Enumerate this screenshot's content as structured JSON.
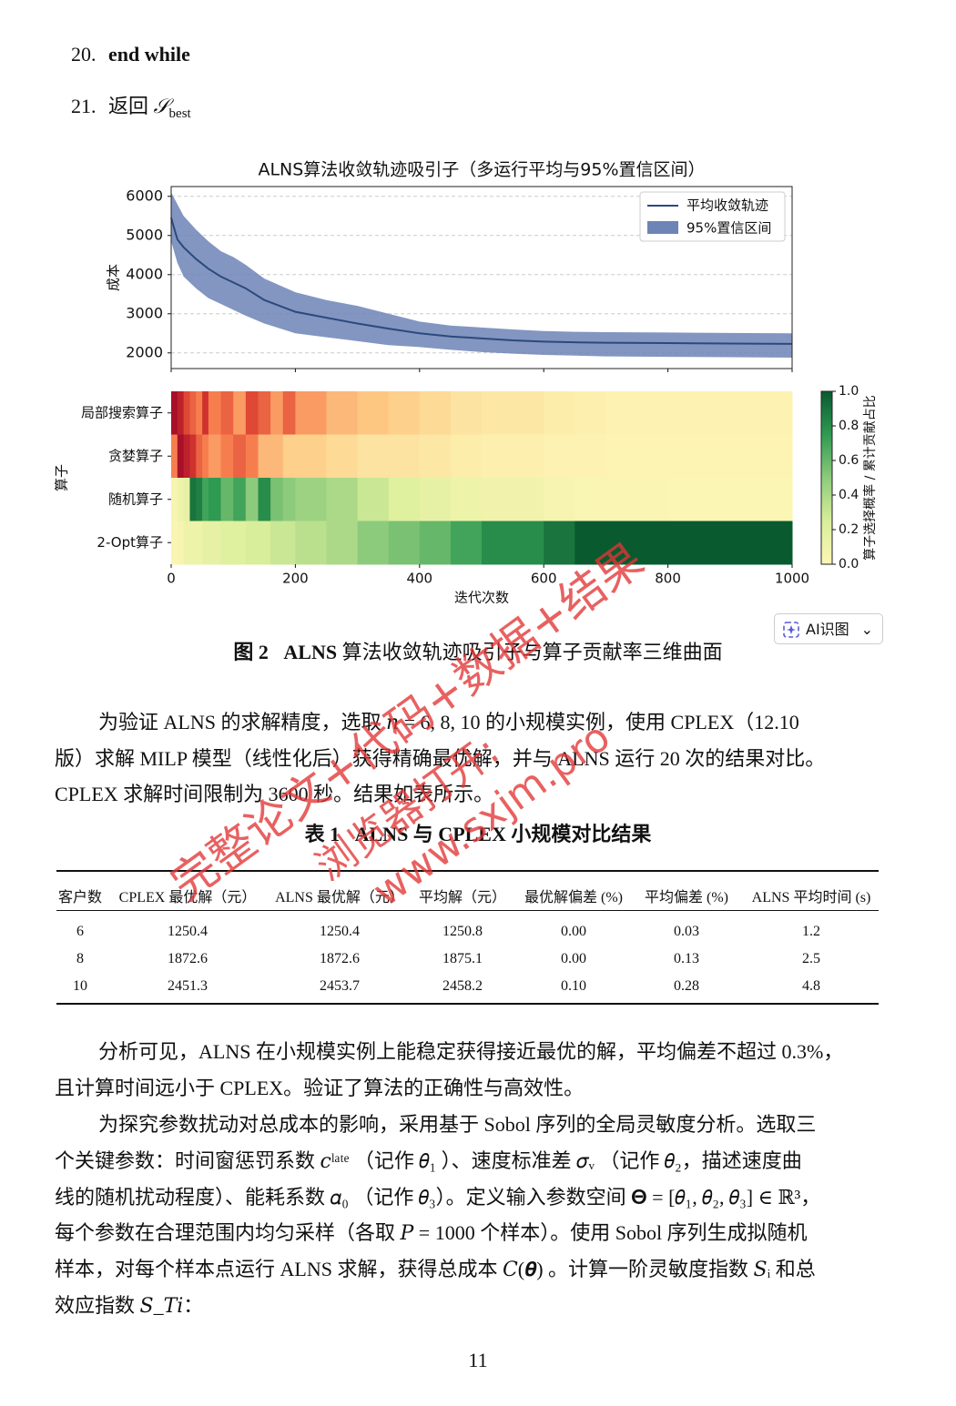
{
  "algorithm_lines": [
    {
      "number": "20.",
      "text": "end while"
    },
    {
      "number": "21.",
      "text": "返回",
      "symbol": "𝒮",
      "subscript": "best"
    }
  ],
  "chart_data": [
    {
      "type": "line",
      "title": "ALNS算法收敛轨迹吸引子（多运行平均与95%置信区间）",
      "ylabel": "成本",
      "x": [
        0,
        10,
        20,
        40,
        60,
        80,
        100,
        120,
        150,
        200,
        250,
        300,
        350,
        400,
        450,
        500,
        550,
        600,
        650,
        700,
        800,
        900,
        1000
      ],
      "series": [
        {
          "name": "平均收敛轨迹",
          "color": "#2b4a7c",
          "values": [
            5450,
            4900,
            4700,
            4400,
            4150,
            3950,
            3800,
            3650,
            3350,
            3050,
            2900,
            2750,
            2620,
            2500,
            2420,
            2370,
            2320,
            2290,
            2270,
            2260,
            2250,
            2240,
            2230
          ]
        }
      ],
      "band": {
        "name": "95%置信区间",
        "color": "#6d84b6",
        "upper": [
          6100,
          5800,
          5500,
          5150,
          4850,
          4600,
          4450,
          4250,
          3900,
          3550,
          3350,
          3200,
          3000,
          2800,
          2700,
          2650,
          2600,
          2560,
          2540,
          2530,
          2520,
          2510,
          2500
        ],
        "lower": [
          4850,
          4300,
          3950,
          3650,
          3400,
          3250,
          3100,
          2950,
          2750,
          2500,
          2400,
          2300,
          2200,
          2150,
          2080,
          2020,
          1980,
          1950,
          1930,
          1910,
          1900,
          1890,
          1880
        ]
      },
      "xlim": [
        0,
        1000
      ],
      "xticks": [
        0,
        200,
        400,
        600,
        800,
        1000
      ],
      "ylim": [
        1600,
        6250
      ],
      "yticks": [
        2000,
        3000,
        4000,
        5000,
        6000
      ],
      "grid": true,
      "legend": "upper right"
    },
    {
      "type": "heatmap",
      "xlabel": "迭代次数",
      "ylabel": "算子",
      "colorbar_label": "算子选择概率 / 累计贡献占比",
      "x_edges": [
        0,
        10,
        20,
        30,
        40,
        50,
        60,
        80,
        100,
        120,
        140,
        160,
        180,
        200,
        250,
        300,
        350,
        400,
        450,
        500,
        600,
        650,
        700,
        800,
        1000
      ],
      "rows": [
        {
          "name": "局部搜索算子",
          "colormap": "red",
          "values": [
            1.0,
            0.9,
            0.7,
            0.6,
            0.5,
            0.8,
            0.5,
            0.6,
            0.4,
            0.7,
            0.6,
            0.4,
            0.6,
            0.4,
            0.3,
            0.25,
            0.2,
            0.15,
            0.1,
            0.08,
            0.05,
            0.03,
            0.02,
            0.02
          ]
        },
        {
          "name": "贪婪算子",
          "colormap": "red",
          "values": [
            0.5,
            1.0,
            0.9,
            0.8,
            0.6,
            0.5,
            0.4,
            0.5,
            0.6,
            0.5,
            0.3,
            0.3,
            0.2,
            0.2,
            0.15,
            0.1,
            0.1,
            0.08,
            0.05,
            0.03,
            0.02,
            0.02,
            0.01,
            0.01
          ]
        },
        {
          "name": "随机算子",
          "colormap": "green",
          "values": [
            0.05,
            0.1,
            0.15,
            0.9,
            0.85,
            0.7,
            0.75,
            0.6,
            0.7,
            0.5,
            0.8,
            0.55,
            0.5,
            0.45,
            0.4,
            0.3,
            0.2,
            0.15,
            0.1,
            0.08,
            0.05,
            0.03,
            0.02,
            0.01
          ]
        },
        {
          "name": "2-Opt算子",
          "colormap": "green",
          "values": [
            0.02,
            0.05,
            0.1,
            0.1,
            0.1,
            0.15,
            0.15,
            0.2,
            0.2,
            0.25,
            0.25,
            0.3,
            0.3,
            0.35,
            0.4,
            0.5,
            0.55,
            0.6,
            0.7,
            0.8,
            0.9,
            1.0,
            1.0,
            1.0
          ]
        }
      ],
      "colormaps": {
        "red": [
          "#fdf6b5",
          "#fdc782",
          "#f67e4e",
          "#d93a2f",
          "#a8102a"
        ],
        "green": [
          "#fdf6b5",
          "#d8ee9a",
          "#8dcb7c",
          "#2f9a52",
          "#0a5a30"
        ]
      },
      "xlim": [
        0,
        1000
      ],
      "xticks": [
        0,
        200,
        400,
        600,
        800,
        1000
      ],
      "clim": [
        0,
        1
      ],
      "cticks": [
        {
          "value": 0,
          "label": "0.0"
        },
        {
          "value": 0.2,
          "label": "0.2"
        },
        {
          "value": 0.4,
          "label": "0.4"
        },
        {
          "value": 0.6,
          "label": "0.6"
        },
        {
          "value": 0.8,
          "label": "0.8"
        },
        {
          "value": 1,
          "label": "1.0"
        }
      ]
    }
  ],
  "caption": {
    "label": "图 2",
    "title": "ALNS",
    "text": "算法收敛轨迹吸引子与算子贡献率三维曲面"
  },
  "ai_button": "AI识图",
  "paragraph1": [
    "为验证 ALNS 的求解精度，选取 𝑛 = 6, 8, 10 的小规模实例，使用 CPLEX（12.10",
    "版）求解 MILP 模型（线性化后）获得精确最优解，并与 ALNS 运行 20 次的结果对比。",
    "CPLEX 求解时间限制为 3600 秒。结果如表所示。"
  ],
  "table": {
    "label": "表 1",
    "title": "ALNS 与 CPLEX 小规模对比结果",
    "header": [
      "客户数",
      "CPLEX 最优解（元）",
      "ALNS 最优解（元）",
      "平均解（元）",
      "最优解偏差 (%)",
      "平均偏差 (%)",
      "ALNS 平均时间 (s)"
    ],
    "rows": [
      [
        "6",
        "1250.4",
        "1250.4",
        "1250.8",
        "0.00",
        "0.03",
        "1.2"
      ],
      [
        "8",
        "1872.6",
        "1872.6",
        "1875.1",
        "0.00",
        "0.13",
        "2.5"
      ],
      [
        "10",
        "2451.3",
        "2453.7",
        "2458.2",
        "0.10",
        "0.28",
        "4.8"
      ]
    ]
  },
  "paragraph2": [
    "分析可见，ALNS 在小规模实例上能稳定获得接近最优的解，平均偏差不超过 0.3%，",
    "且计算时间远小于 CPLEX。验证了算法的正确性与高效性。"
  ],
  "paragraph3": [
    "为探究参数扰动对总成本的影响，采用基于 Sobol 序列的全局灵敏度分析。选取三",
    "个关键参数：时间窗惩罚系数 𝑐ˡᵃᵗᵉ （记作 𝜃₁ ）、速度标准差 𝜎ᵥ （记作 𝜃₂，描述速度曲",
    "线的随机扰动程度）、能耗系数 𝛼₀ （记作 𝜃₃）。定义输入参数空间 𝚯 = [𝜃₁, 𝜃₂, 𝜃₃] ∈ ℝ³，",
    "每个参数在合理范围内均匀采样（各取 𝑃 = 1000 个样本）。使用 Sobol 序列生成拟随机",
    "样本，对每个样本点运行 ALNS 求解，获得总成本 𝐶(𝜽) 。计算一阶灵敏度指数 𝑆ᵢ 和总",
    "效应指数 𝑆_𝑇𝑖："
  ],
  "watermark": [
    "完整论文+代码+数据+结果",
    "浏览器打开:",
    "www.sxjm.pro"
  ],
  "page_number": "11"
}
